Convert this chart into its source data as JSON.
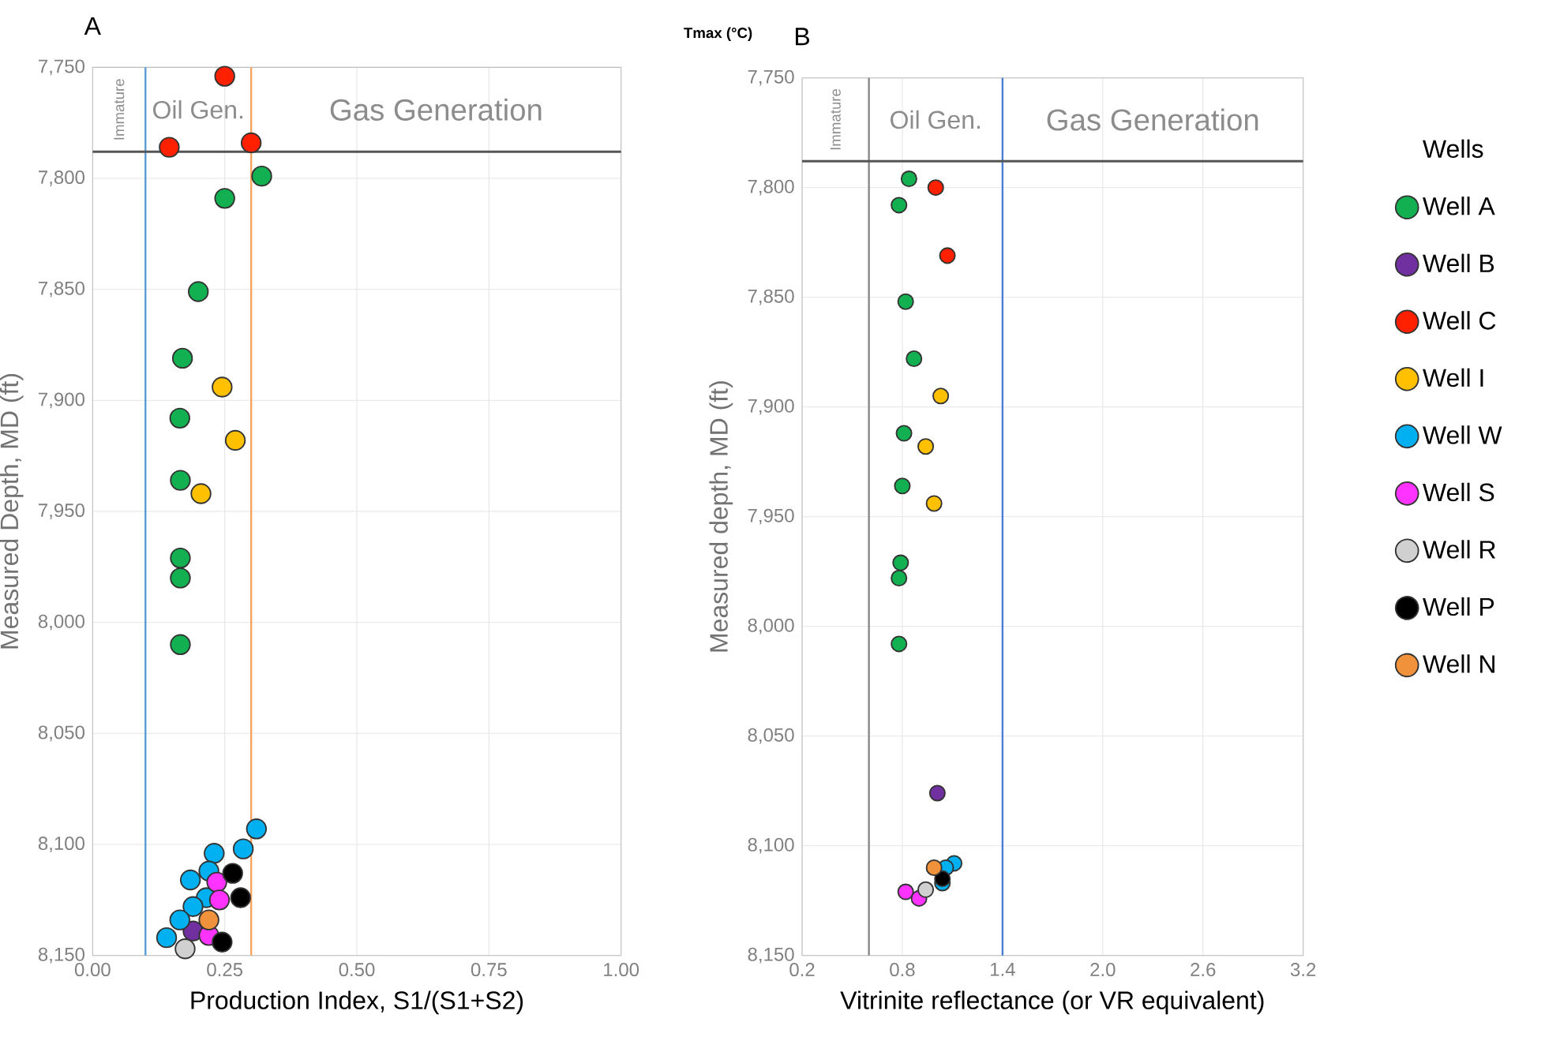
{
  "chart_data": [
    {
      "type": "scatter",
      "title": "A",
      "xlabel": "Production Index, S1/(S1+S2)",
      "ylabel": "Measured Depth, MD (ft)",
      "marker": "circle",
      "grid": true,
      "xlim": [
        0,
        1
      ],
      "xticks": [
        {
          "value": 0,
          "label": "0.00"
        },
        {
          "value": 0.25,
          "label": "0.25"
        },
        {
          "value": 0.5,
          "label": "0.50"
        },
        {
          "value": 0.75,
          "label": "0.75"
        },
        {
          "value": 1,
          "label": "1.00"
        }
      ],
      "ylim": [
        8150,
        7750
      ],
      "yticks": [
        {
          "value": 7750,
          "label": "7,750"
        },
        {
          "value": 7800,
          "label": "7,800"
        },
        {
          "value": 7850,
          "label": "7,850"
        },
        {
          "value": 7900,
          "label": "7,900"
        },
        {
          "value": 7950,
          "label": "7,950"
        },
        {
          "value": 8000,
          "label": "8,000"
        },
        {
          "value": 8050,
          "label": "8,050"
        },
        {
          "value": 8100,
          "label": "8,100"
        },
        {
          "value": 8150,
          "label": "8,150"
        }
      ],
      "ref_lines": [
        {
          "axis": "x",
          "value": 0.1,
          "color": "#5b9bd5"
        },
        {
          "axis": "x",
          "value": 0.3,
          "color": "#f4a460"
        },
        {
          "axis": "y",
          "value": 7788,
          "color": "#555555"
        }
      ],
      "annotations": [
        "Immature",
        "Oil Gen.",
        "Gas Generation"
      ],
      "series": [
        {
          "color": "#12b050",
          "x": [
            0.32,
            0.25,
            0.2,
            0.17,
            0.165,
            0.166,
            0.166,
            0.166,
            0.166
          ],
          "values": [
            7799,
            7809,
            7851,
            7881,
            7908,
            7936,
            7971,
            7980,
            8010
          ]
        },
        {
          "color": "#7030a0",
          "x": [
            0.19
          ],
          "values": [
            8139
          ]
        },
        {
          "color": "#ff2000",
          "x": [
            0.25,
            0.145,
            0.3
          ],
          "values": [
            7754,
            7786,
            7784
          ]
        },
        {
          "color": "#ffc000",
          "x": [
            0.245,
            0.27,
            0.205
          ],
          "values": [
            7894,
            7918,
            7942
          ]
        },
        {
          "color": "#00b0f0",
          "x": [
            0.31,
            0.285,
            0.23,
            0.22,
            0.185,
            0.215,
            0.19,
            0.165,
            0.14
          ],
          "values": [
            8093,
            8102,
            8104,
            8112,
            8116,
            8124,
            8128,
            8134,
            8142
          ]
        },
        {
          "color": "#ff33ff",
          "x": [
            0.235,
            0.24,
            0.22
          ],
          "values": [
            8117,
            8125,
            8141
          ]
        },
        {
          "color": "#d0d0d0",
          "x": [
            0.175
          ],
          "values": [
            8147
          ]
        },
        {
          "color": "#000000",
          "x": [
            0.265,
            0.28,
            0.245
          ],
          "values": [
            8113,
            8124,
            8144
          ]
        },
        {
          "color": "#f0913c",
          "x": [
            0.22
          ],
          "values": [
            8134
          ]
        }
      ]
    },
    {
      "type": "scatter",
      "title": "B",
      "xlabel": "Vitrinite reflectance (or VR equivalent)",
      "ylabel": "Measured depth, MD (ft)",
      "marker": "circle",
      "grid": true,
      "legend": "right",
      "legend_title": "Wells",
      "annotations": [
        "Tmax (°C)",
        "Immature",
        "Oil Gen.",
        "Gas Generation"
      ],
      "xlim": [
        0.2,
        3.2
      ],
      "xticks": [
        0.2,
        0.8,
        1.4,
        {
          "value": 2.0,
          "label": "2.0"
        },
        2.6,
        3.2
      ],
      "ylim": [
        8150,
        7750
      ],
      "yticks": [
        {
          "value": 7750,
          "label": "7,750"
        },
        {
          "value": 7800,
          "label": "7,800"
        },
        {
          "value": 7850,
          "label": "7,850"
        },
        {
          "value": 7900,
          "label": "7,900"
        },
        {
          "value": 7950,
          "label": "7,950"
        },
        {
          "value": 8000,
          "label": "8,000"
        },
        {
          "value": 8050,
          "label": "8,050"
        },
        {
          "value": 8100,
          "label": "8,100"
        },
        {
          "value": 8150,
          "label": "8,150"
        }
      ],
      "ref_lines": [
        {
          "axis": "x",
          "value": 0.6,
          "color": "#888888"
        },
        {
          "axis": "x",
          "value": 1.4,
          "color": "#4a7fd4"
        },
        {
          "axis": "y",
          "value": 7788,
          "color": "#555555"
        }
      ],
      "series": [
        {
          "name": "Well A",
          "color": "#12b050",
          "x": [
            0.84,
            0.78,
            0.82,
            0.87,
            0.81,
            0.8,
            0.79,
            0.78,
            0.78
          ],
          "values": [
            7796,
            7808,
            7852,
            7878,
            7912,
            7936,
            7971,
            7978,
            8008
          ]
        },
        {
          "name": "Well B",
          "color": "#7030a0",
          "x": [
            1.01
          ],
          "values": [
            8076
          ]
        },
        {
          "name": "Well C",
          "color": "#ff2000",
          "x": [
            1.0,
            1.07
          ],
          "values": [
            7800,
            7831
          ]
        },
        {
          "name": "Well I",
          "color": "#ffc000",
          "x": [
            1.03,
            0.94,
            0.99
          ],
          "values": [
            7895,
            7918,
            7944
          ]
        },
        {
          "name": "Well W",
          "color": "#00b0f0",
          "x": [
            1.11,
            1.06,
            1.04
          ],
          "values": [
            8108,
            8110,
            8117
          ]
        },
        {
          "name": "Well S",
          "color": "#ff33ff",
          "x": [
            0.82,
            0.9
          ],
          "values": [
            8121,
            8124
          ]
        },
        {
          "name": "Well R",
          "color": "#d0d0d0",
          "x": [
            0.94
          ],
          "values": [
            8120
          ]
        },
        {
          "name": "Well P",
          "color": "#000000",
          "x": [
            1.04
          ],
          "values": [
            8115
          ]
        },
        {
          "name": "Well N",
          "color": "#f0913c",
          "x": [
            0.99
          ],
          "values": [
            8110
          ]
        }
      ]
    }
  ]
}
